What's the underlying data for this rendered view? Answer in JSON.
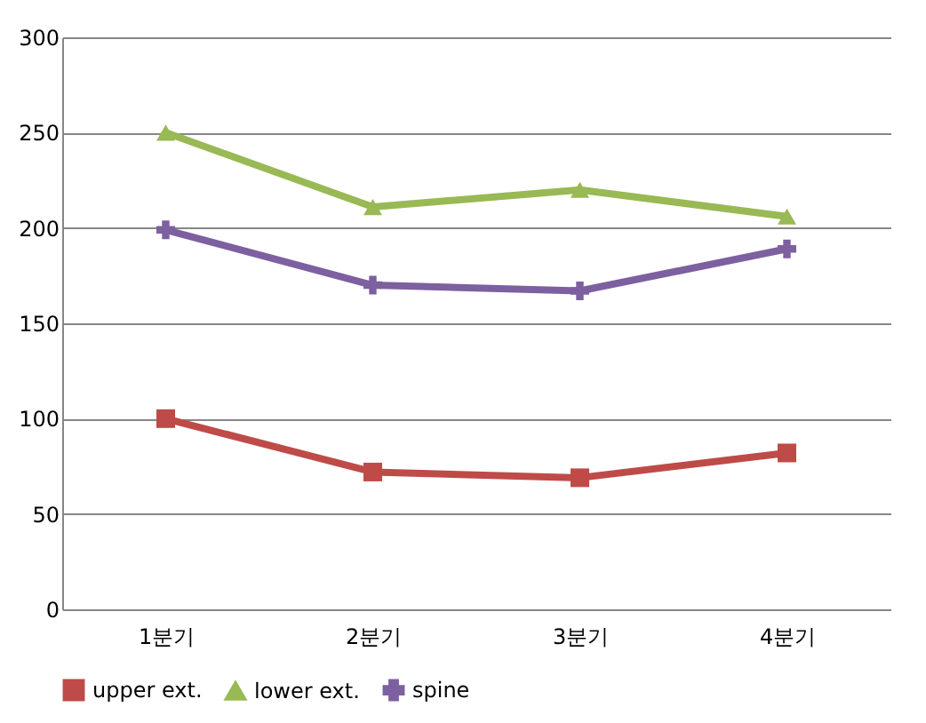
{
  "chart_data": {
    "type": "line",
    "categories": [
      "1분기",
      "2분기",
      "3분기",
      "4분기"
    ],
    "series": [
      {
        "name": "upper ext.",
        "color": "#be4b48",
        "marker": "square",
        "values": [
          100,
          72,
          69,
          82
        ]
      },
      {
        "name": "lower ext.",
        "color": "#98b954",
        "marker": "triangle",
        "values": [
          250,
          211,
          220,
          206
        ]
      },
      {
        "name": "spine",
        "color": "#7d60a0",
        "marker": "cross",
        "values": [
          199,
          170,
          167,
          189
        ]
      }
    ],
    "ylim": [
      0,
      300
    ],
    "yticks": [
      0,
      50,
      100,
      150,
      200,
      250,
      300
    ],
    "grid": "y",
    "legend": "bottom",
    "line_style": "solid"
  }
}
